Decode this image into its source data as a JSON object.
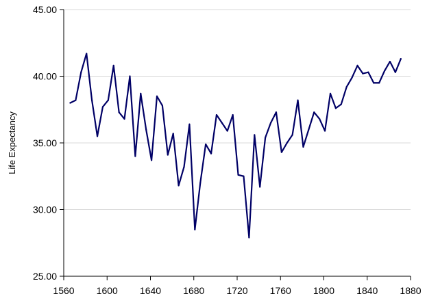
{
  "chart_data": {
    "type": "line",
    "title": "",
    "xlabel": "",
    "ylabel": "Life Expectancy",
    "xlim": [
      1560,
      1880
    ],
    "ylim": [
      25,
      45
    ],
    "x_ticks": [
      1560,
      1600,
      1640,
      1680,
      1720,
      1760,
      1800,
      1840,
      1880
    ],
    "x_tick_labels": [
      "1560",
      "1600",
      "1640",
      "1680",
      "1720",
      "1760",
      "1800",
      "1840",
      "1880"
    ],
    "y_ticks": [
      25,
      30,
      35,
      40,
      45
    ],
    "y_tick_labels": [
      "25.00",
      "30.00",
      "35.00",
      "40.00",
      "45.00"
    ],
    "grid": "horizontal",
    "legend": "none",
    "series": [
      {
        "color": "#000066",
        "x": [
          1566,
          1571,
          1576,
          1581,
          1586,
          1591,
          1596,
          1601,
          1606,
          1611,
          1616,
          1621,
          1626,
          1631,
          1636,
          1641,
          1646,
          1651,
          1656,
          1661,
          1666,
          1671,
          1676,
          1681,
          1686,
          1691,
          1696,
          1701,
          1706,
          1711,
          1716,
          1721,
          1726,
          1731,
          1736,
          1741,
          1746,
          1751,
          1756,
          1761,
          1766,
          1771,
          1776,
          1781,
          1786,
          1791,
          1796,
          1801,
          1806,
          1811,
          1816,
          1821,
          1826,
          1831,
          1836,
          1841,
          1846,
          1851,
          1856,
          1861,
          1866,
          1871
        ],
        "y": [
          38.0,
          38.2,
          40.3,
          41.7,
          38.2,
          35.5,
          37.7,
          38.2,
          40.8,
          37.3,
          36.8,
          40.0,
          34.0,
          38.7,
          36.0,
          33.7,
          38.5,
          37.8,
          34.1,
          35.7,
          31.8,
          33.2,
          36.4,
          28.5,
          32.0,
          34.9,
          34.2,
          37.1,
          36.5,
          35.9,
          37.1,
          32.6,
          32.5,
          27.9,
          35.6,
          31.7,
          35.4,
          36.5,
          37.3,
          34.3,
          35.0,
          35.6,
          38.2,
          34.7,
          36.0,
          37.3,
          36.8,
          35.9,
          38.7,
          37.6,
          37.9,
          39.2,
          39.9,
          40.8,
          40.2,
          40.3,
          39.5,
          39.5,
          40.4,
          41.1,
          40.3,
          41.3
        ]
      }
    ]
  }
}
